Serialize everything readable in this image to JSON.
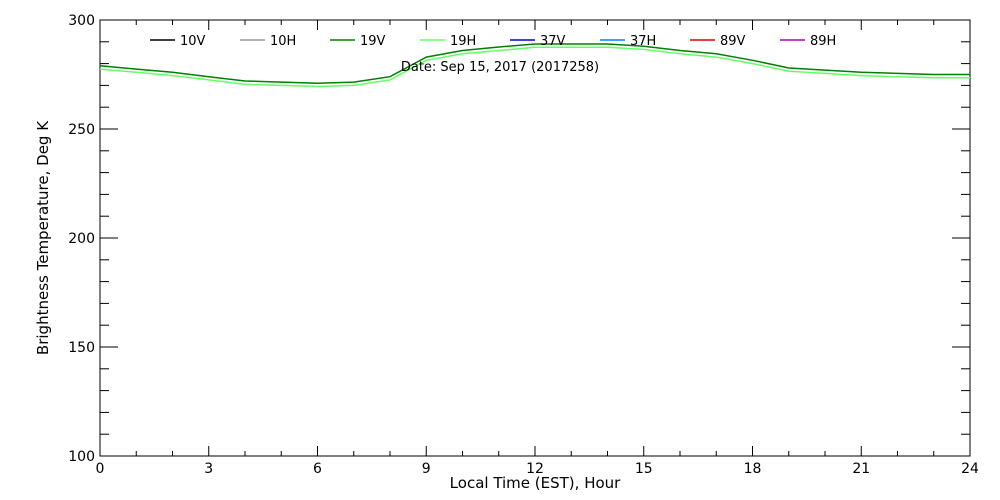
{
  "chart_data": {
    "type": "line",
    "annotation": "Date: Sep 15, 2017 (2017258)",
    "xlabel": "Local Time (EST), Hour",
    "ylabel": "Brightness Temperature, Deg K",
    "xlim": [
      0,
      24
    ],
    "ylim": [
      100,
      300
    ],
    "xticks": [
      0,
      3,
      6,
      9,
      12,
      15,
      18,
      21,
      24
    ],
    "yticks": [
      100,
      150,
      200,
      250,
      300
    ],
    "grid": false,
    "legend_position": "top",
    "legend": [
      {
        "name": "10V",
        "color": "#000000"
      },
      {
        "name": "10H",
        "color": "#999999"
      },
      {
        "name": "19V",
        "color": "#008000"
      },
      {
        "name": "19H",
        "color": "#66ff66"
      },
      {
        "name": "37V",
        "color": "#0000cc"
      },
      {
        "name": "37H",
        "color": "#0080ff"
      },
      {
        "name": "89V",
        "color": "#e00000"
      },
      {
        "name": "89H",
        "color": "#b000b0"
      }
    ],
    "x": [
      0,
      1,
      2,
      3,
      4,
      5,
      6,
      7,
      8,
      9,
      10,
      11,
      12,
      13,
      14,
      15,
      16,
      17,
      18,
      19,
      20,
      21,
      22,
      23,
      24
    ],
    "series": [
      {
        "name": "19V",
        "color": "#008000",
        "values": [
          279,
          277.5,
          276,
          274,
          272,
          271.5,
          271,
          271.5,
          274,
          283,
          286,
          287.6,
          289,
          289,
          289,
          288,
          286,
          284.5,
          281.5,
          278,
          277,
          276,
          275.5,
          275,
          275
        ]
      },
      {
        "name": "19H",
        "color": "#66ff66",
        "values": [
          277.5,
          276,
          274.5,
          272.5,
          270.5,
          270,
          269.5,
          270,
          272.5,
          281.5,
          284.5,
          286,
          287.5,
          287.5,
          287.5,
          286.5,
          284.5,
          283,
          280,
          276.5,
          275.5,
          274.5,
          274,
          273.5,
          273.5
        ]
      }
    ]
  }
}
